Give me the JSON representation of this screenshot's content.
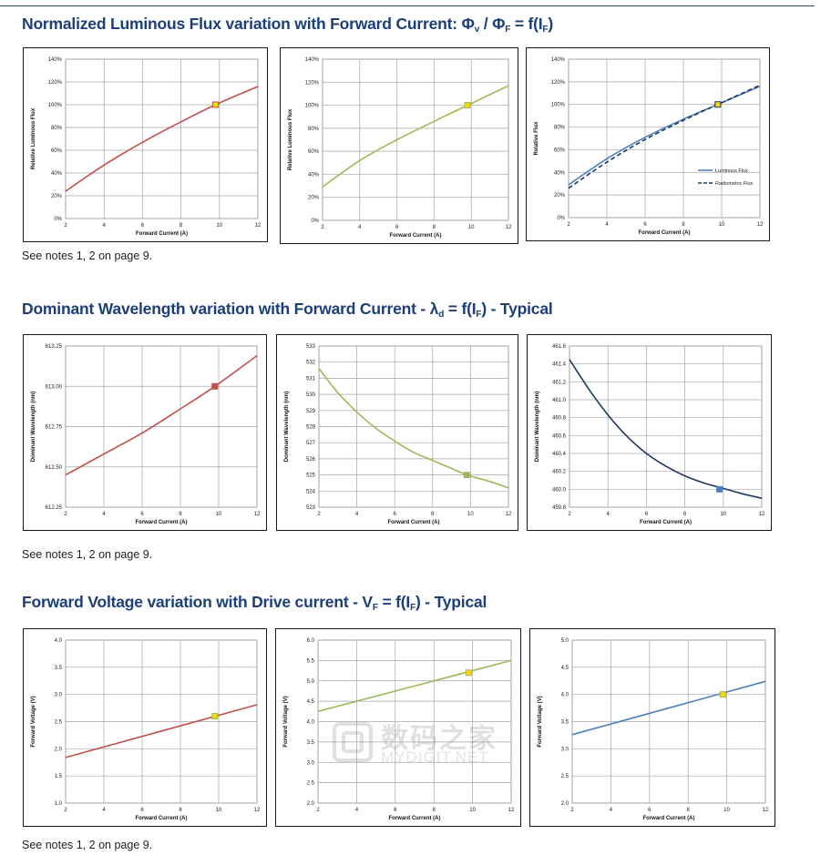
{
  "sections": [
    {
      "title": {
        "main": "Normalized Luminous Flux variation with Forward Current: Φ",
        "s1": "v",
        "mid": " / Φ",
        "s2": "F",
        "end": " = f(I",
        "s3": "F",
        "close": ")"
      },
      "note": "See notes 1, 2 on page 9."
    },
    {
      "title": {
        "main": "Dominant Wavelength variation with Forward Current - λ",
        "s1": "d",
        "mid": " = f(I",
        "s2": "F",
        "end": ") - Typical",
        "s3": "",
        "close": ""
      },
      "note": "See notes 1, 2  on page 9."
    },
    {
      "title": {
        "main": "Forward Voltage variation with Drive current - V",
        "s1": "F",
        "mid": " = f(I",
        "s2": "F",
        "end": ") - Typical",
        "s3": "",
        "close": ""
      },
      "note": "See notes 1, 2  on page 9."
    }
  ],
  "watermark": {
    "cn": "数码之家",
    "en": "MYDIGIT.NET"
  },
  "chart_data": [
    {
      "type": "line",
      "xlabel": "Forward Current (A)",
      "ylabel": "Relative Luminous Flux",
      "xlim": [
        2,
        12
      ],
      "ylim": [
        0,
        140
      ],
      "yticks": [
        0,
        20,
        40,
        60,
        80,
        100,
        120,
        140
      ],
      "xticks": [
        2,
        4,
        6,
        8,
        10,
        12
      ],
      "ytick_labels": [
        "0%",
        "20%",
        "40%",
        "60%",
        "80%",
        "100%",
        "120%",
        "140%"
      ],
      "ytick_decimals": 0,
      "ytick_suffix": "%",
      "grid": true,
      "series": [
        {
          "color": "#c0504d",
          "dashed": false,
          "x": [
            2,
            4,
            6,
            8,
            9.8,
            12
          ],
          "y": [
            24,
            47,
            67,
            85,
            100,
            116
          ]
        }
      ],
      "marker": {
        "x": 9.8,
        "y": 100,
        "fill": "#ffd700",
        "stroke": "#c0504d"
      }
    },
    {
      "type": "line",
      "xlabel": "Forward Current (A)",
      "ylabel": "Relative Luminous Flux",
      "xlim": [
        2,
        12
      ],
      "ylim": [
        0,
        140
      ],
      "yticks": [
        0,
        20,
        40,
        60,
        80,
        100,
        120,
        140
      ],
      "xticks": [
        2,
        4,
        6,
        8,
        10,
        12
      ],
      "ytick_labels": [
        "0%",
        "20%",
        "40%",
        "60%",
        "80%",
        "100%",
        "120%",
        "140%"
      ],
      "grid": true,
      "series": [
        {
          "color": "#9bbb59",
          "dashed": false,
          "x": [
            2,
            4,
            6,
            8,
            9.8,
            12
          ],
          "y": [
            29,
            52,
            70,
            86,
            100,
            117
          ]
        }
      ],
      "marker": {
        "x": 9.8,
        "y": 100,
        "fill": "#ffd700",
        "stroke": "#9bbb59"
      }
    },
    {
      "type": "line",
      "xlabel": "Forward Current (A)",
      "ylabel": "Relative Flux",
      "xlim": [
        2,
        12
      ],
      "ylim": [
        0,
        140
      ],
      "yticks": [
        0,
        20,
        40,
        60,
        80,
        100,
        120,
        140
      ],
      "xticks": [
        2,
        4,
        6,
        8,
        10,
        12
      ],
      "ytick_labels": [
        "0%",
        "20%",
        "40%",
        "60%",
        "80%",
        "100%",
        "120%",
        "140%"
      ],
      "grid": true,
      "legend_position": "right",
      "series": [
        {
          "name": "Luminous Flux",
          "color": "#4f81bd",
          "dashed": false,
          "x": [
            2,
            4,
            6,
            8,
            9.8,
            12
          ],
          "y": [
            29,
            52,
            71,
            87,
            100,
            116
          ]
        },
        {
          "name": "Radiometric Flux",
          "color": "#1f3864",
          "dashed": true,
          "x": [
            2,
            4,
            6,
            8,
            9.8,
            12
          ],
          "y": [
            26,
            49,
            69,
            86,
            100,
            117
          ]
        }
      ],
      "marker": {
        "x": 9.8,
        "y": 100,
        "fill": "#ffd700",
        "stroke": "#1f3864"
      }
    },
    {
      "type": "line",
      "xlabel": "Forward Current (A)",
      "ylabel": "Dominant Wavelength (nm)",
      "xlim": [
        2,
        12
      ],
      "ylim": [
        612.25,
        613.25
      ],
      "yticks": [
        612.25,
        612.5,
        612.75,
        613.0,
        613.25
      ],
      "xticks": [
        2,
        4,
        6,
        8,
        10,
        12
      ],
      "ytick_labels": [
        "612.25",
        "612.50",
        "612.75",
        "613.00",
        "613.25"
      ],
      "grid": true,
      "series": [
        {
          "color": "#c0504d",
          "dashed": false,
          "x": [
            2,
            4,
            6,
            8,
            9.8,
            12
          ],
          "y": [
            612.45,
            612.58,
            612.71,
            612.86,
            613.0,
            613.19
          ]
        }
      ],
      "marker": {
        "x": 9.8,
        "y": 613.0,
        "fill": "#c0504d",
        "stroke": "#c0504d"
      }
    },
    {
      "type": "line",
      "xlabel": "Forward Current (A)",
      "ylabel": "Dominant Wavelength (nm)",
      "xlim": [
        2,
        12
      ],
      "ylim": [
        523,
        533
      ],
      "yticks": [
        523,
        524,
        525,
        526,
        527,
        528,
        529,
        530,
        531,
        532,
        533
      ],
      "xticks": [
        2,
        4,
        6,
        8,
        10,
        12
      ],
      "ytick_labels": [
        "523",
        "524",
        "525",
        "526",
        "527",
        "528",
        "529",
        "530",
        "531",
        "532",
        "533"
      ],
      "grid": true,
      "series": [
        {
          "color": "#9bbb59",
          "dashed": false,
          "x": [
            2,
            3,
            4,
            5,
            6,
            7,
            8,
            9,
            9.8,
            11,
            12
          ],
          "y": [
            531.6,
            530.1,
            528.9,
            527.9,
            527.1,
            526.4,
            525.9,
            525.4,
            525.0,
            524.6,
            524.2
          ]
        }
      ],
      "marker": {
        "x": 9.8,
        "y": 525.0,
        "fill": "#9bbb59",
        "stroke": "#9bbb59"
      }
    },
    {
      "type": "line",
      "xlabel": "Forward Current (A)",
      "ylabel": "Dominant Wavelength (nm)",
      "xlim": [
        2,
        12
      ],
      "ylim": [
        459.8,
        461.6
      ],
      "yticks": [
        459.8,
        460.0,
        460.2,
        460.4,
        460.6,
        460.8,
        461.0,
        461.2,
        461.4,
        461.6
      ],
      "xticks": [
        2,
        4,
        6,
        8,
        10,
        12
      ],
      "ytick_labels": [
        "459.8",
        "460.0",
        "460.2",
        "460.4",
        "460.6",
        "460.8",
        "461.0",
        "461.2",
        "461.4",
        "461.6"
      ],
      "grid": true,
      "series": [
        {
          "color": "#1f3864",
          "dashed": false,
          "x": [
            2,
            3,
            4,
            5,
            6,
            7,
            8,
            9,
            10,
            11,
            12
          ],
          "y": [
            461.45,
            461.12,
            460.83,
            460.59,
            460.4,
            460.26,
            460.15,
            460.07,
            460.01,
            459.95,
            459.9
          ]
        }
      ],
      "marker": {
        "x": 9.8,
        "y": 460.0,
        "fill": "#4f81bd",
        "stroke": "#4f81bd"
      }
    },
    {
      "type": "line",
      "xlabel": "Forward Current (A)",
      "ylabel": "Forward Voltage (V)",
      "xlim": [
        2,
        12
      ],
      "ylim": [
        1.0,
        4.0
      ],
      "yticks": [
        1.0,
        1.5,
        2.0,
        2.5,
        3.0,
        3.5,
        4.0
      ],
      "xticks": [
        2,
        4,
        6,
        8,
        10,
        12
      ],
      "ytick_labels": [
        "1.0",
        "1.5",
        "2.0",
        "2.5",
        "3.0",
        "3.5",
        "4.0"
      ],
      "grid": true,
      "series": [
        {
          "color": "#c0504d",
          "dashed": false,
          "x": [
            2,
            12
          ],
          "y": [
            1.84,
            2.81
          ]
        }
      ],
      "marker": {
        "x": 9.8,
        "y": 2.6,
        "fill": "#ffd700",
        "stroke": "#9bbb59"
      }
    },
    {
      "type": "line",
      "xlabel": "Forward Current (A)",
      "ylabel": "Forward Voltage (V)",
      "xlim": [
        2,
        12
      ],
      "ylim": [
        2.0,
        6.0
      ],
      "yticks": [
        2.0,
        2.5,
        3.0,
        3.5,
        4.0,
        4.5,
        5.0,
        5.5,
        6.0
      ],
      "xticks": [
        2,
        4,
        6,
        8,
        10,
        12
      ],
      "ytick_labels": [
        "2.0",
        "2.5",
        "3.0",
        "3.5",
        "4.0",
        "4.5",
        "5.0",
        "5.5",
        "6.0"
      ],
      "grid": true,
      "series": [
        {
          "color": "#9bbb59",
          "dashed": false,
          "x": [
            2,
            12
          ],
          "y": [
            4.25,
            5.5
          ]
        }
      ],
      "marker": {
        "x": 9.8,
        "y": 5.2,
        "fill": "#ffd700",
        "stroke": "#9bbb59"
      }
    },
    {
      "type": "line",
      "xlabel": "Forward Current (A)",
      "ylabel": "Forward Voltage (V)",
      "xlim": [
        2,
        12
      ],
      "ylim": [
        2.0,
        5.0
      ],
      "yticks": [
        2.0,
        2.5,
        3.0,
        3.5,
        4.0,
        4.5,
        5.0
      ],
      "xticks": [
        2,
        4,
        6,
        8,
        10,
        12
      ],
      "ytick_labels": [
        "2.0",
        "2.5",
        "3.0",
        "3.5",
        "4.0",
        "4.5",
        "5.0"
      ],
      "grid": true,
      "series": [
        {
          "color": "#4f81bd",
          "dashed": false,
          "x": [
            2,
            12
          ],
          "y": [
            3.26,
            4.24
          ]
        }
      ],
      "marker": {
        "x": 9.8,
        "y": 4.0,
        "fill": "#ffd700",
        "stroke": "#9bbb59"
      }
    }
  ]
}
